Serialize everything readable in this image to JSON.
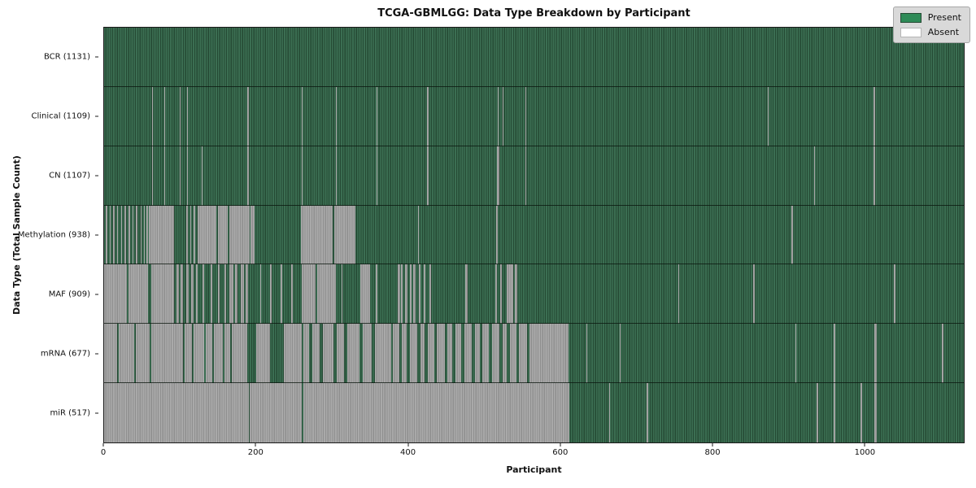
{
  "title": "TCGA-GBMLGG: Data Type Breakdown by Participant",
  "xlabel": "Participant",
  "ylabel": "Data Type (Total Sample Count)",
  "legend": {
    "present_label": "Present",
    "absent_label": "Absent"
  },
  "colors": {
    "present": "#2e8b57",
    "absent": "#ffffff",
    "present_stripe_light": "#3b6e52",
    "present_stripe_dark": "#254a34",
    "absent_stripe_light": "#a9a9a9",
    "absent_stripe_dark": "#8f8f8f",
    "axis_line": "#1a1a1a",
    "legend_bg": "#d9d9d9"
  },
  "chart_data": {
    "type": "heatmap",
    "description": "Per-participant data availability matrix; each row is a data type, each of 1131 participant columns is Present (green) or Absent (white/gray). absent_segments are [start_participant, width_in_participants].",
    "n_participants": 1131,
    "x_range": [
      0,
      1131
    ],
    "x_ticks": [
      0,
      200,
      400,
      600,
      800,
      1000
    ],
    "grid": false,
    "legend_position": "upper right",
    "rows": [
      {
        "name": "BCR",
        "label": "BCR (1131)",
        "present_count": 1131,
        "absent_segments": []
      },
      {
        "name": "Clinical",
        "label": "Clinical (1109)",
        "present_count": 1109,
        "absent_segments": [
          [
            63,
            1.5
          ],
          [
            79,
            1.5
          ],
          [
            99,
            1.5
          ],
          [
            109,
            1.5
          ],
          [
            188,
            3
          ],
          [
            260,
            1.5
          ],
          [
            305,
            1.5
          ],
          [
            358,
            1.5
          ],
          [
            425,
            1.5
          ],
          [
            518,
            1.5
          ],
          [
            524,
            1.5
          ],
          [
            554,
            1.5
          ],
          [
            873,
            1.5
          ],
          [
            1012,
            2
          ]
        ]
      },
      {
        "name": "CN",
        "label": "CN (1107)",
        "present_count": 1107,
        "absent_segments": [
          [
            63,
            1.5
          ],
          [
            79,
            1.5
          ],
          [
            99,
            1.5
          ],
          [
            109,
            1.5
          ],
          [
            128,
            1.5
          ],
          [
            188,
            3
          ],
          [
            260,
            1.5
          ],
          [
            305,
            1.5
          ],
          [
            358,
            1.5
          ],
          [
            425,
            1.5
          ],
          [
            517,
            3
          ],
          [
            554,
            1.5
          ],
          [
            934,
            1.5
          ],
          [
            1012,
            2
          ]
        ]
      },
      {
        "name": "Methylation",
        "label": "Methylation (938)",
        "present_count": 938,
        "absent_segments": [
          [
            2,
            2
          ],
          [
            7,
            1.5
          ],
          [
            12,
            2
          ],
          [
            17,
            1.5
          ],
          [
            22,
            2
          ],
          [
            27,
            1.5
          ],
          [
            32,
            2
          ],
          [
            37,
            1.5
          ],
          [
            42,
            2
          ],
          [
            48,
            1.5
          ],
          [
            52,
            2
          ],
          [
            56,
            1.5
          ],
          [
            59,
            33
          ],
          [
            108,
            2
          ],
          [
            113,
            2
          ],
          [
            118,
            2
          ],
          [
            123,
            25
          ],
          [
            150,
            13
          ],
          [
            165,
            26
          ],
          [
            193,
            5
          ],
          [
            259,
            42
          ],
          [
            303,
            28
          ],
          [
            413,
            1.5
          ],
          [
            516,
            2
          ],
          [
            904,
            2
          ]
        ]
      },
      {
        "name": "MAF",
        "label": "MAF (909)",
        "present_count": 909,
        "absent_segments": [
          [
            0,
            30
          ],
          [
            32,
            26
          ],
          [
            62,
            30
          ],
          [
            95,
            3
          ],
          [
            101,
            3
          ],
          [
            108,
            3
          ],
          [
            115,
            3
          ],
          [
            121,
            2
          ],
          [
            130,
            2
          ],
          [
            140,
            2
          ],
          [
            150,
            2
          ],
          [
            158,
            2
          ],
          [
            165,
            5
          ],
          [
            172,
            4
          ],
          [
            180,
            4
          ],
          [
            186,
            3
          ],
          [
            205,
            2
          ],
          [
            218,
            2
          ],
          [
            232,
            2
          ],
          [
            246,
            2
          ],
          [
            260,
            18
          ],
          [
            280,
            25
          ],
          [
            312,
            2
          ],
          [
            337,
            13
          ],
          [
            357,
            3
          ],
          [
            386,
            3
          ],
          [
            391,
            2
          ],
          [
            396,
            3
          ],
          [
            402,
            2
          ],
          [
            407,
            3
          ],
          [
            414,
            2
          ],
          [
            420,
            3
          ],
          [
            428,
            2
          ],
          [
            475,
            3
          ],
          [
            515,
            2
          ],
          [
            521,
            2
          ],
          [
            530,
            8
          ],
          [
            540,
            4
          ],
          [
            755,
            2
          ],
          [
            854,
            2
          ],
          [
            1039,
            2
          ]
        ]
      },
      {
        "name": "mRNA",
        "label": "mRNA (677)",
        "present_count": 677,
        "absent_segments": [
          [
            0,
            17
          ],
          [
            19,
            21
          ],
          [
            42,
            18
          ],
          [
            62,
            30
          ],
          [
            92,
            12
          ],
          [
            106,
            10
          ],
          [
            118,
            14
          ],
          [
            134,
            8
          ],
          [
            144,
            12
          ],
          [
            158,
            8
          ],
          [
            168,
            20
          ],
          [
            200,
            18
          ],
          [
            237,
            23
          ],
          [
            262,
            8
          ],
          [
            274,
            10
          ],
          [
            288,
            14
          ],
          [
            306,
            10
          ],
          [
            320,
            16
          ],
          [
            340,
            12
          ],
          [
            356,
            22
          ],
          [
            380,
            8
          ],
          [
            392,
            6
          ],
          [
            402,
            10
          ],
          [
            416,
            6
          ],
          [
            426,
            8
          ],
          [
            438,
            10
          ],
          [
            452,
            6
          ],
          [
            462,
            8
          ],
          [
            474,
            10
          ],
          [
            488,
            6
          ],
          [
            498,
            8
          ],
          [
            510,
            10
          ],
          [
            524,
            6
          ],
          [
            534,
            8
          ],
          [
            546,
            10
          ],
          [
            560,
            51
          ],
          [
            634,
            2
          ],
          [
            678,
            2
          ],
          [
            909,
            2
          ],
          [
            960,
            2
          ],
          [
            1013,
            3
          ],
          [
            1102,
            2
          ]
        ]
      },
      {
        "name": "miR",
        "label": "miR (517)",
        "present_count": 517,
        "absent_segments": [
          [
            0,
            190
          ],
          [
            191.5,
            69
          ],
          [
            262,
            350
          ],
          [
            664,
            2
          ],
          [
            714,
            2
          ],
          [
            937,
            2
          ],
          [
            960,
            2
          ],
          [
            995,
            2
          ],
          [
            1013,
            3
          ]
        ]
      }
    ]
  }
}
